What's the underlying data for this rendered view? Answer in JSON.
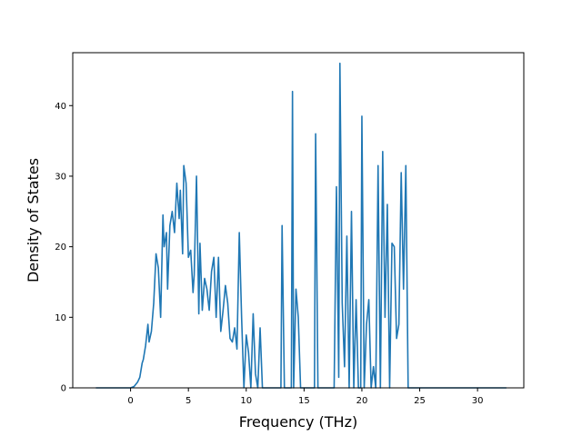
{
  "chart_data": {
    "type": "line",
    "title": "",
    "xlabel": "Frequency (THz)",
    "ylabel": "Density of States",
    "xlim": [
      -5.0,
      34.0
    ],
    "ylim": [
      0,
      47.5
    ],
    "xticks": [
      0,
      5,
      10,
      15,
      20,
      25,
      30
    ],
    "yticks": [
      0,
      10,
      20,
      30,
      40
    ],
    "grid": false,
    "legend": "none",
    "series_color": "#1f77b4",
    "series": [
      {
        "x": [
          -3.0,
          -2.0,
          -1.0,
          0.0,
          0.3,
          0.6,
          0.8,
          1.0,
          1.1,
          1.3,
          1.5,
          1.6,
          1.8,
          2.0,
          2.2,
          2.4,
          2.6,
          2.8,
          2.9,
          3.1,
          3.2,
          3.4,
          3.6,
          3.8,
          4.0,
          4.2,
          4.3,
          4.5,
          4.6,
          4.8,
          5.0,
          5.2,
          5.4,
          5.5,
          5.7,
          5.9,
          6.0,
          6.2,
          6.4,
          6.6,
          6.8,
          7.0,
          7.2,
          7.4,
          7.6,
          7.8,
          8.0,
          8.2,
          8.4,
          8.6,
          8.8,
          9.0,
          9.2,
          9.4,
          9.6,
          9.8,
          10.0,
          10.2,
          10.4,
          10.6,
          10.8,
          11.0,
          11.2,
          11.4,
          11.6,
          11.8,
          12.0,
          12.1,
          13.0,
          13.1,
          13.3,
          13.5,
          13.9,
          14.0,
          14.1,
          14.3,
          14.5,
          14.7,
          14.9,
          15.0,
          15.9,
          16.0,
          16.2,
          16.4,
          17.6,
          17.8,
          18.0,
          18.1,
          18.3,
          18.5,
          18.7,
          18.9,
          19.1,
          19.3,
          19.5,
          19.7,
          19.9,
          20.0,
          20.2,
          20.4,
          20.6,
          20.8,
          21.0,
          21.2,
          21.4,
          21.6,
          21.8,
          22.0,
          22.2,
          22.4,
          22.6,
          22.8,
          23.0,
          23.2,
          23.4,
          23.6,
          23.8,
          24.0,
          24.2,
          24.4,
          24.6,
          25.0,
          28.0,
          30.0,
          32.5
        ],
        "y": [
          0,
          0,
          0,
          0,
          0.2,
          0.8,
          1.5,
          3.5,
          4.0,
          6.0,
          9.0,
          6.5,
          8.0,
          12.0,
          19.0,
          17.0,
          10.0,
          24.5,
          20.0,
          22.0,
          14.0,
          23.0,
          25.0,
          22.0,
          29.0,
          24.0,
          28.0,
          19.0,
          31.5,
          29.0,
          18.5,
          19.5,
          13.5,
          16.0,
          30.0,
          10.5,
          20.5,
          11.0,
          15.5,
          14.0,
          11.0,
          16.5,
          18.5,
          10.0,
          18.5,
          8.0,
          11.0,
          14.5,
          12.0,
          7.0,
          6.5,
          8.5,
          5.5,
          22.0,
          10.0,
          0,
          7.5,
          5.0,
          0,
          10.5,
          2.0,
          0,
          8.5,
          0,
          0,
          0,
          0,
          0,
          0,
          23.0,
          0,
          0,
          0,
          42.0,
          0,
          14.0,
          10.0,
          0,
          0,
          0,
          0,
          36.0,
          0,
          0,
          0,
          28.5,
          1.5,
          46.0,
          12.0,
          3.0,
          21.5,
          0,
          25.0,
          0,
          12.5,
          0,
          0,
          38.5,
          0,
          9.0,
          12.5,
          0,
          3.0,
          0,
          31.5,
          0,
          33.5,
          10.0,
          26.0,
          0,
          20.5,
          20.0,
          7.0,
          9.0,
          30.5,
          14.0,
          31.5,
          0,
          0,
          0,
          0,
          0,
          0,
          0,
          0
        ]
      }
    ]
  }
}
